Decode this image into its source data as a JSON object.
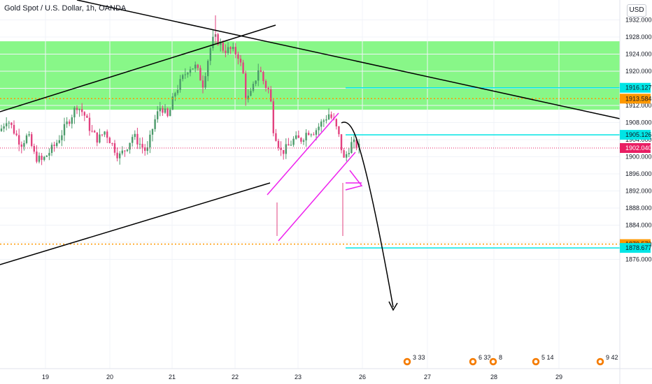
{
  "header": {
    "title": "Gold Spot / U.S. Dollar, 1h, OANDA",
    "currency_button": "USD"
  },
  "chart_data": {
    "type": "candlestick",
    "symbol": "Gold Spot / U.S. Dollar",
    "timeframe": "1h",
    "exchange": "OANDA",
    "currency": "USD",
    "ylim": [
      1873.0,
      1933.0
    ],
    "y_ticks": [
      "1932.000",
      "1928.000",
      "1924.000",
      "1920.000",
      "1912.000",
      "1908.000",
      "1904.000",
      "1900.000",
      "1896.000",
      "1892.000",
      "1888.000",
      "1884.000",
      "1876.000"
    ],
    "x_ticks": [
      "19",
      "20",
      "21",
      "22",
      "23",
      "26",
      "27",
      "28",
      "29"
    ],
    "price_tags": [
      {
        "label": "1916.127",
        "value": 1916.127,
        "color": "#00e5e5",
        "style": "solid-line"
      },
      {
        "label": "1913.584",
        "value": 1913.584,
        "color": "#ff9800",
        "style": "dotted-line"
      },
      {
        "label": "1905.126",
        "value": 1905.126,
        "color": "#00e5e5",
        "style": "solid-line"
      },
      {
        "label": "1902.040",
        "value": 1902.04,
        "color": "#e91e63",
        "style": "current-price"
      },
      {
        "label": "1879.570",
        "value": 1879.57,
        "color": "#ff9800",
        "style": "dotted-line"
      },
      {
        "label": "1878.677",
        "value": 1878.677,
        "color": "#00e5e5",
        "style": "solid-line"
      }
    ],
    "zone": {
      "from": 1911.0,
      "to": 1927.0,
      "color": "#88f788"
    },
    "up_color": "#4b9a6a",
    "down_color": "#e2427f",
    "event_badges": [
      {
        "day": "26",
        "numbers": "3 33"
      },
      {
        "day": "27",
        "numbers": "6 33"
      },
      {
        "day": "28",
        "numbers": "8"
      },
      {
        "day": "29",
        "numbers": "5 14"
      },
      {
        "day": "29",
        "numbers": "9 42"
      }
    ]
  }
}
